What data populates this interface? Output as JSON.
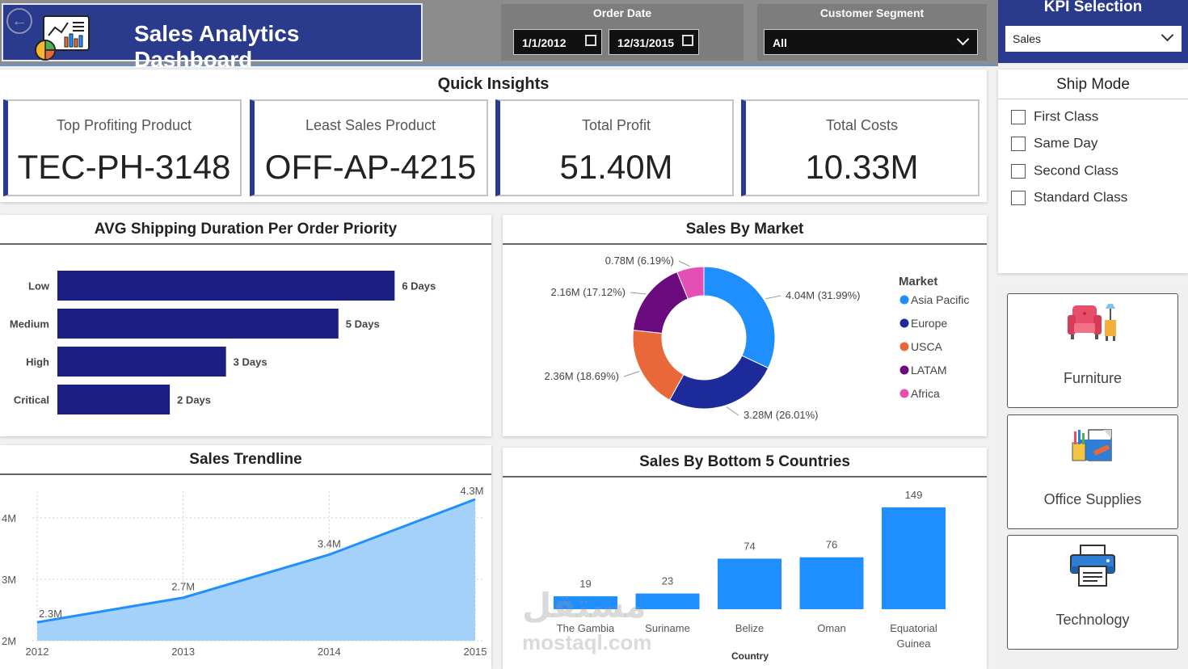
{
  "header": {
    "title": "Sales Analytics Dashboard",
    "order_date_label": "Order Date",
    "start_date": "1/1/2012",
    "end_date": "12/31/2015",
    "segment_label": "Customer Segment",
    "segment_value": "All",
    "kpi_label": "KPI Selection",
    "kpi_value": "Sales"
  },
  "quick_insights": {
    "title": "Quick Insights",
    "cards": [
      {
        "label": "Top Profiting Product",
        "value": "TEC-PH-3148"
      },
      {
        "label": "Least Sales Product",
        "value": "OFF-AP-4215"
      },
      {
        "label": "Total Profit",
        "value": "51.40M"
      },
      {
        "label": "Total Costs",
        "value": "10.33M"
      }
    ]
  },
  "ship_mode": {
    "title": "Ship Mode",
    "options": [
      "First Class",
      "Same Day",
      "Second Class",
      "Standard Class"
    ]
  },
  "categories": [
    "Furniture",
    "Office Supplies",
    "Technology"
  ],
  "colors": {
    "navy": "#1c1f82",
    "blue": "#1f8fff",
    "dark_blue": "#1c2a9a",
    "orange": "#e8683a",
    "purple": "#6b0a7e",
    "pink": "#e44fb5",
    "area_fill": "#a3d1fa",
    "header_blue": "#2a3a8c"
  },
  "watermark": {
    "ar": "مستقل",
    "en": "mostaql.com"
  },
  "chart_data": [
    {
      "type": "bar",
      "orientation": "horizontal",
      "title": "AVG Shipping Duration Per Order Priority",
      "categories": [
        "Low",
        "Medium",
        "High",
        "Critical"
      ],
      "values": [
        6,
        5,
        3,
        2
      ],
      "data_labels": [
        "6 Days",
        "5 Days",
        "3 Days",
        "2 Days"
      ],
      "xlim": [
        0,
        6.7
      ]
    },
    {
      "type": "pie",
      "title": "Sales By Market",
      "legend_title": "Market",
      "legend_position": "right",
      "slices": [
        {
          "name": "Asia Pacific",
          "value": 4.04,
          "label": "4.04M (31.99%)"
        },
        {
          "name": "Europe",
          "value": 3.28,
          "label": "3.28M (26.01%)"
        },
        {
          "name": "USCA",
          "value": 2.36,
          "label": "2.36M (18.69%)"
        },
        {
          "name": "LATAM",
          "value": 2.16,
          "label": "2.16M (17.12%)"
        },
        {
          "name": "Africa",
          "value": 0.78,
          "label": "0.78M (6.19%)"
        }
      ]
    },
    {
      "type": "area",
      "title": "Sales Trendline",
      "x": [
        "2012",
        "2013",
        "2014",
        "2015"
      ],
      "values": [
        2.3,
        2.7,
        3.4,
        4.3
      ],
      "data_labels": [
        "2.3M",
        "2.7M",
        "3.4M",
        "4.3M"
      ],
      "ytick_labels": [
        "2M",
        "3M",
        "4M"
      ],
      "ylim": [
        2,
        4.3
      ],
      "grid": true
    },
    {
      "type": "bar",
      "title": "Sales By Bottom 5 Countries",
      "xlabel": "Country",
      "categories": [
        "The Gambia",
        "Suriname",
        "Belize",
        "Oman",
        "Equatorial Guinea"
      ],
      "values": [
        19,
        23,
        74,
        76,
        149
      ],
      "ylim": [
        0,
        149
      ]
    }
  ]
}
